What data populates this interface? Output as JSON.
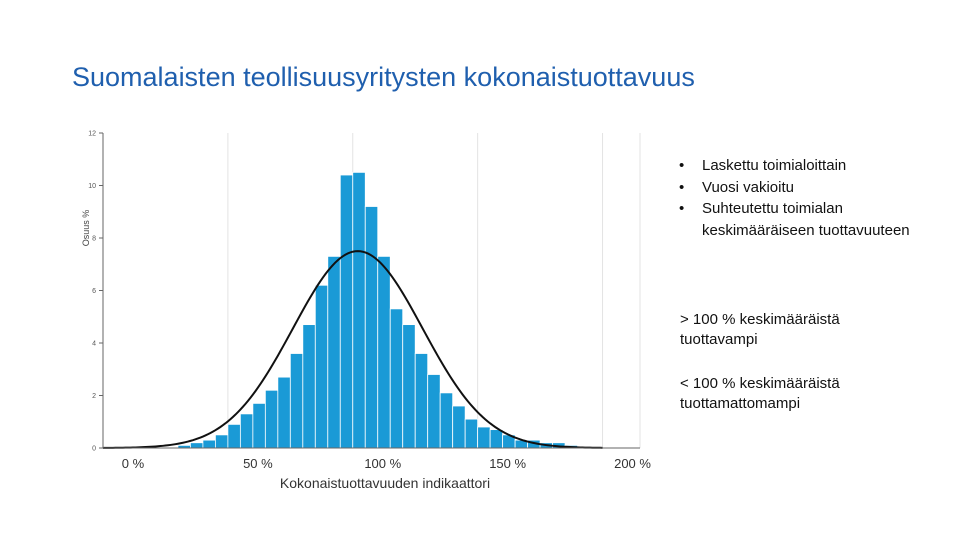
{
  "title": "Suomalaisten teollisuusyritysten kokonaistuottavuus",
  "notes": {
    "bullets": [
      "Laskettu toimialoittain",
      "Vuosi vakioitu",
      "Suhteutettu toimialan keskimääräiseen tuottavuuteen"
    ],
    "above": "> 100 % keskimääräistä tuottavampi",
    "below": "< 100 % keskimääräistä tuottamattomampi"
  },
  "chart_data": {
    "type": "bar",
    "xlabel": "Kokonaistuottavuuden indikaattori",
    "ylabel": "Osuus %",
    "xlim": [
      0,
      215
    ],
    "ylim": [
      0,
      12
    ],
    "x_ticks": [
      {
        "value": 0,
        "label": "0 %"
      },
      {
        "value": 50,
        "label": "50 %"
      },
      {
        "value": 100,
        "label": "100 %"
      },
      {
        "value": 150,
        "label": "150 %"
      },
      {
        "value": 200,
        "label": "200 %"
      }
    ],
    "y_ticks": [
      "0",
      "2",
      "4",
      "6",
      "8",
      "10",
      "12"
    ],
    "bin_width": 5,
    "bins": [
      {
        "x": 32.5,
        "y": 0.1
      },
      {
        "x": 37.5,
        "y": 0.2
      },
      {
        "x": 42.5,
        "y": 0.3
      },
      {
        "x": 47.5,
        "y": 0.5
      },
      {
        "x": 52.5,
        "y": 0.9
      },
      {
        "x": 57.5,
        "y": 1.3
      },
      {
        "x": 62.5,
        "y": 1.7
      },
      {
        "x": 67.5,
        "y": 2.2
      },
      {
        "x": 72.5,
        "y": 2.7
      },
      {
        "x": 77.5,
        "y": 3.6
      },
      {
        "x": 82.5,
        "y": 4.7
      },
      {
        "x": 87.5,
        "y": 6.2
      },
      {
        "x": 92.5,
        "y": 7.3
      },
      {
        "x": 97.5,
        "y": 10.4
      },
      {
        "x": 102.5,
        "y": 10.5
      },
      {
        "x": 107.5,
        "y": 9.2
      },
      {
        "x": 112.5,
        "y": 7.3
      },
      {
        "x": 117.5,
        "y": 5.3
      },
      {
        "x": 122.5,
        "y": 4.7
      },
      {
        "x": 127.5,
        "y": 3.6
      },
      {
        "x": 132.5,
        "y": 2.8
      },
      {
        "x": 137.5,
        "y": 2.1
      },
      {
        "x": 142.5,
        "y": 1.6
      },
      {
        "x": 147.5,
        "y": 1.1
      },
      {
        "x": 152.5,
        "y": 0.8
      },
      {
        "x": 157.5,
        "y": 0.7
      },
      {
        "x": 162.5,
        "y": 0.5
      },
      {
        "x": 167.5,
        "y": 0.3
      },
      {
        "x": 172.5,
        "y": 0.3
      },
      {
        "x": 177.5,
        "y": 0.2
      },
      {
        "x": 182.5,
        "y": 0.2
      },
      {
        "x": 187.5,
        "y": 0.1
      }
    ],
    "normal_curve": {
      "mean": 102,
      "sd": 26,
      "peak": 7.5
    },
    "bar_color": "#1a9ad6",
    "curve_color": "#111111",
    "grid": "vertical"
  }
}
